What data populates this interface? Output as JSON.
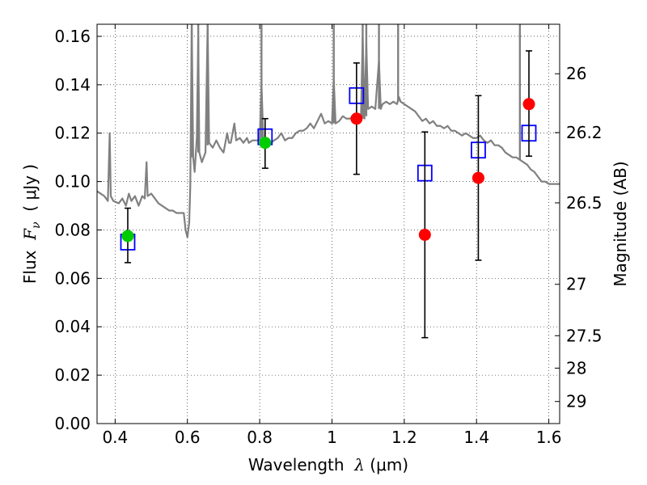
{
  "chart_data": {
    "type": "scatter",
    "xlabel": {
      "prefix": "Wavelength  ",
      "symbol": "λ",
      "unit": " (μm)"
    },
    "ylabel": {
      "prefix": "Flux  ",
      "symbol": "F",
      "sub": "ν",
      "unit": "  ( μJy )"
    },
    "y2label": "Magnitude (AB)",
    "xlim": [
      0.35,
      1.63
    ],
    "ylim": [
      0.0,
      0.165
    ],
    "grid": true,
    "xticks": [
      0.4,
      0.6,
      0.8,
      1.0,
      1.2,
      1.4,
      1.6
    ],
    "xtick_labels": [
      "0.4",
      "0.6",
      "0.8",
      "1",
      "1.2",
      "1.4",
      "1.6"
    ],
    "yticks": [
      0.0,
      0.02,
      0.04,
      0.06,
      0.08,
      0.1,
      0.12,
      0.14,
      0.16
    ],
    "ytick_labels": [
      "0.00",
      "0.02",
      "0.04",
      "0.06",
      "0.08",
      "0.10",
      "0.12",
      "0.14",
      "0.16"
    ],
    "y2ticks": [
      {
        "label": "26",
        "mag": 26.0
      },
      {
        "label": "26.2",
        "mag": 26.2
      },
      {
        "label": "26.5",
        "mag": 26.5
      },
      {
        "label": "27",
        "mag": 27.0
      },
      {
        "label": "27.5",
        "mag": 27.5
      },
      {
        "label": "28",
        "mag": 28.0
      },
      {
        "label": "29",
        "mag": 29.0
      }
    ],
    "series": [
      {
        "kind": "line",
        "color": "#808080",
        "points": [
          [
            0.35,
            0.096
          ],
          [
            0.36,
            0.095
          ],
          [
            0.37,
            0.094
          ],
          [
            0.38,
            0.092
          ],
          [
            0.385,
            0.12
          ],
          [
            0.388,
            0.094
          ],
          [
            0.395,
            0.092
          ],
          [
            0.41,
            0.091
          ],
          [
            0.42,
            0.093
          ],
          [
            0.43,
            0.09
          ],
          [
            0.438,
            0.095
          ],
          [
            0.445,
            0.092
          ],
          [
            0.455,
            0.094
          ],
          [
            0.465,
            0.09
          ],
          [
            0.475,
            0.094
          ],
          [
            0.482,
            0.093
          ],
          [
            0.487,
            0.108
          ],
          [
            0.49,
            0.094
          ],
          [
            0.5,
            0.095
          ],
          [
            0.51,
            0.093
          ],
          [
            0.52,
            0.091
          ],
          [
            0.53,
            0.09
          ],
          [
            0.54,
            0.089
          ],
          [
            0.55,
            0.088
          ],
          [
            0.56,
            0.088
          ],
          [
            0.57,
            0.087
          ],
          [
            0.58,
            0.087
          ],
          [
            0.59,
            0.087
          ],
          [
            0.595,
            0.08
          ],
          [
            0.6,
            0.077
          ],
          [
            0.605,
            0.083
          ],
          [
            0.608,
            0.098
          ],
          [
            0.612,
            0.165
          ],
          [
            0.616,
            0.11
          ],
          [
            0.62,
            0.104
          ],
          [
            0.626,
            0.118
          ],
          [
            0.63,
            0.16
          ],
          [
            0.633,
            0.112
          ],
          [
            0.64,
            0.108
          ],
          [
            0.65,
            0.112
          ],
          [
            0.656,
            0.165
          ],
          [
            0.66,
            0.116
          ],
          [
            0.67,
            0.114
          ],
          [
            0.68,
            0.117
          ],
          [
            0.69,
            0.114
          ],
          [
            0.7,
            0.112
          ],
          [
            0.71,
            0.12
          ],
          [
            0.715,
            0.116
          ],
          [
            0.72,
            0.116
          ],
          [
            0.73,
            0.124
          ],
          [
            0.735,
            0.117
          ],
          [
            0.745,
            0.118
          ],
          [
            0.755,
            0.116
          ],
          [
            0.765,
            0.118
          ],
          [
            0.77,
            0.116
          ],
          [
            0.78,
            0.117
          ],
          [
            0.79,
            0.117
          ],
          [
            0.8,
            0.117
          ],
          [
            0.805,
            0.14
          ],
          [
            0.81,
            0.118
          ],
          [
            0.82,
            0.117
          ],
          [
            0.83,
            0.116
          ],
          [
            0.84,
            0.117
          ],
          [
            0.85,
            0.118
          ],
          [
            0.86,
            0.12
          ],
          [
            0.87,
            0.117
          ],
          [
            0.88,
            0.118
          ],
          [
            0.89,
            0.118
          ],
          [
            0.9,
            0.12
          ],
          [
            0.91,
            0.121
          ],
          [
            0.92,
            0.121
          ],
          [
            0.93,
            0.122
          ],
          [
            0.94,
            0.124
          ],
          [
            0.95,
            0.122
          ],
          [
            0.96,
            0.125
          ],
          [
            0.97,
            0.128
          ],
          [
            0.98,
            0.124
          ],
          [
            0.99,
            0.125
          ],
          [
            1.0,
            0.124
          ],
          [
            1.005,
            0.142
          ],
          [
            1.01,
            0.124
          ],
          [
            1.02,
            0.125
          ],
          [
            1.03,
            0.127
          ],
          [
            1.04,
            0.126
          ],
          [
            1.05,
            0.126
          ],
          [
            1.06,
            0.127
          ],
          [
            1.07,
            0.126
          ],
          [
            1.08,
            0.125
          ],
          [
            1.085,
            0.16
          ],
          [
            1.09,
            0.126
          ],
          [
            1.095,
            0.157
          ],
          [
            1.1,
            0.13
          ],
          [
            1.11,
            0.131
          ],
          [
            1.12,
            0.13
          ],
          [
            1.13,
            0.15
          ],
          [
            1.135,
            0.13
          ],
          [
            1.14,
            0.132
          ],
          [
            1.15,
            0.133
          ],
          [
            1.16,
            0.132
          ],
          [
            1.17,
            0.133
          ],
          [
            1.18,
            0.132
          ],
          [
            1.185,
            0.135
          ],
          [
            1.19,
            0.133
          ],
          [
            1.2,
            0.132
          ],
          [
            1.21,
            0.131
          ],
          [
            1.22,
            0.13
          ],
          [
            1.23,
            0.129
          ],
          [
            1.24,
            0.127
          ],
          [
            1.25,
            0.125
          ],
          [
            1.26,
            0.126
          ],
          [
            1.27,
            0.124
          ],
          [
            1.28,
            0.125
          ],
          [
            1.29,
            0.123
          ],
          [
            1.3,
            0.123
          ],
          [
            1.31,
            0.122
          ],
          [
            1.32,
            0.123
          ],
          [
            1.33,
            0.121
          ],
          [
            1.34,
            0.121
          ],
          [
            1.35,
            0.12
          ],
          [
            1.36,
            0.119
          ],
          [
            1.37,
            0.12
          ],
          [
            1.38,
            0.119
          ],
          [
            1.39,
            0.118
          ],
          [
            1.4,
            0.118
          ],
          [
            1.41,
            0.119
          ],
          [
            1.42,
            0.117
          ],
          [
            1.43,
            0.116
          ],
          [
            1.44,
            0.117
          ],
          [
            1.45,
            0.115
          ],
          [
            1.46,
            0.115
          ],
          [
            1.47,
            0.114
          ],
          [
            1.48,
            0.112
          ],
          [
            1.49,
            0.111
          ],
          [
            1.5,
            0.11
          ],
          [
            1.51,
            0.11
          ],
          [
            1.52,
            0.109
          ],
          [
            1.53,
            0.108
          ],
          [
            1.54,
            0.107
          ],
          [
            1.55,
            0.105
          ],
          [
            1.56,
            0.104
          ],
          [
            1.57,
            0.102
          ],
          [
            1.58,
            0.1
          ],
          [
            1.59,
            0.1
          ],
          [
            1.6,
            0.099
          ],
          [
            1.61,
            0.099
          ],
          [
            1.63,
            0.099
          ]
        ],
        "spikes": [
          {
            "x": 0.612,
            "base": 0.11,
            "top": 0.165
          },
          {
            "x": 0.63,
            "base": 0.112,
            "top": 0.165
          },
          {
            "x": 0.656,
            "base": 0.115,
            "top": 0.165
          },
          {
            "x": 0.805,
            "base": 0.118,
            "top": 0.165
          },
          {
            "x": 1.005,
            "base": 0.124,
            "top": 0.165
          },
          {
            "x": 1.085,
            "base": 0.126,
            "top": 0.165
          },
          {
            "x": 1.095,
            "base": 0.127,
            "top": 0.165
          },
          {
            "x": 1.13,
            "base": 0.13,
            "top": 0.165
          },
          {
            "x": 1.183,
            "base": 0.133,
            "top": 0.165
          },
          {
            "x": 1.52,
            "base": 0.109,
            "top": 0.165
          }
        ]
      },
      {
        "kind": "squares",
        "color": "#0000ff",
        "points": [
          {
            "x": 0.435,
            "y": 0.075
          },
          {
            "x": 0.815,
            "y": 0.1185
          },
          {
            "x": 1.068,
            "y": 0.1355
          },
          {
            "x": 1.257,
            "y": 0.1035
          },
          {
            "x": 1.405,
            "y": 0.113
          },
          {
            "x": 1.545,
            "y": 0.12
          }
        ]
      },
      {
        "kind": "errorbars",
        "color": "#000000",
        "points": [
          {
            "x": 0.435,
            "lo": 0.0665,
            "hi": 0.089
          },
          {
            "x": 0.815,
            "lo": 0.1055,
            "hi": 0.126
          },
          {
            "x": 1.068,
            "lo": 0.103,
            "hi": 0.149
          },
          {
            "x": 1.257,
            "lo": 0.0355,
            "hi": 0.1205
          },
          {
            "x": 1.405,
            "lo": 0.0675,
            "hi": 0.1355
          },
          {
            "x": 1.545,
            "lo": 0.1105,
            "hi": 0.154
          }
        ]
      },
      {
        "kind": "dots",
        "color": "#00cc00",
        "points": [
          {
            "x": 0.435,
            "y": 0.0775
          },
          {
            "x": 0.815,
            "y": 0.116
          }
        ]
      },
      {
        "kind": "dots",
        "color": "#ff0000",
        "points": [
          {
            "x": 1.068,
            "y": 0.126
          },
          {
            "x": 1.257,
            "y": 0.078
          },
          {
            "x": 1.405,
            "y": 0.1015
          },
          {
            "x": 1.545,
            "y": 0.132
          }
        ]
      }
    ]
  }
}
